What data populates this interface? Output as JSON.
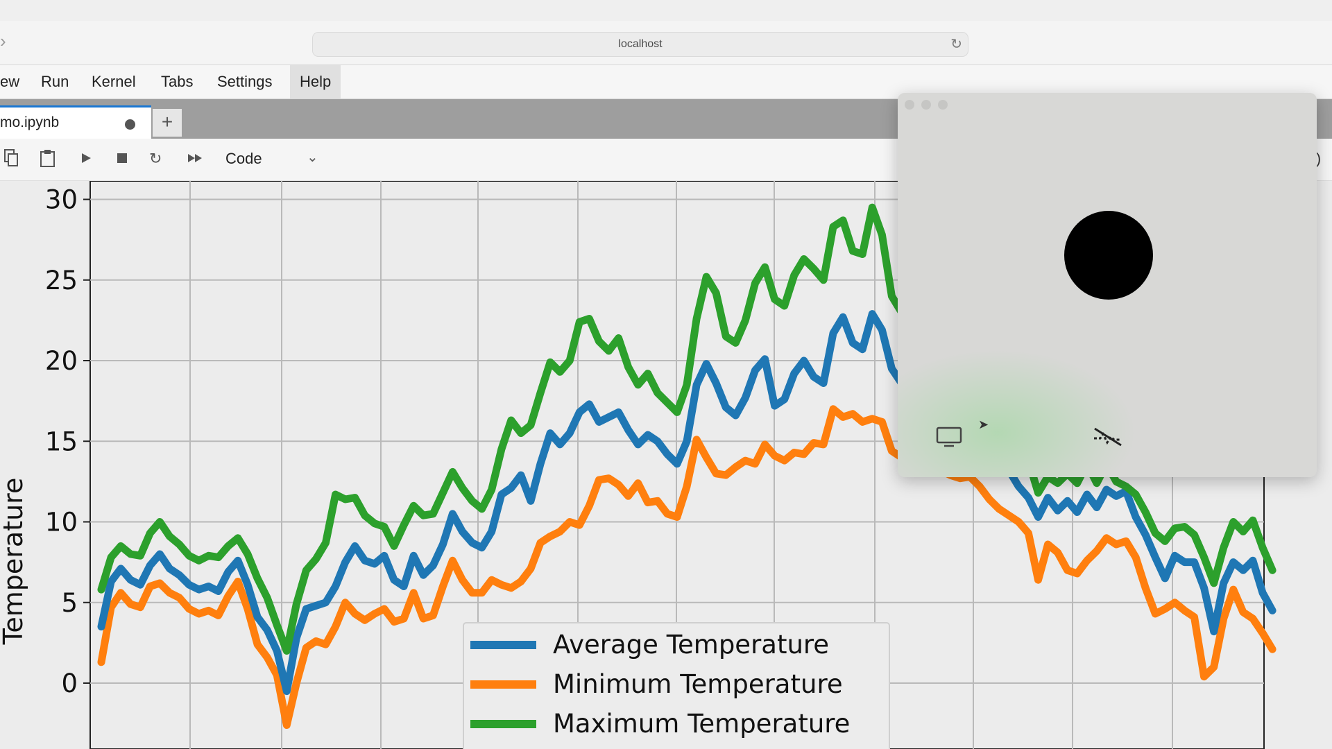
{
  "browser": {
    "url": "localhost",
    "forward_icon": "chevron-right-icon",
    "reload_icon": "reload-icon"
  },
  "menu": {
    "items": [
      "ew",
      "Run",
      "Kernel",
      "Tabs",
      "Settings",
      "Help"
    ]
  },
  "tabs": {
    "active_label": "mo.ipynb",
    "unsaved_indicator": "dot",
    "new_tab_label": "+"
  },
  "toolbar": {
    "icons": [
      "copy-icon",
      "paste-icon",
      "run-icon",
      "stop-icon",
      "restart-icon",
      "run-all-icon"
    ],
    "cell_type": "Code",
    "kernel_status_fragment": "l)"
  },
  "overlay": {
    "icons": [
      "record-dot-icon",
      "screen-icon",
      "pointer-icon",
      "camera-off-icon"
    ]
  },
  "chart_data": {
    "type": "line",
    "ylabel": "Temperature",
    "xlabel": "",
    "ylim": [
      -4,
      31
    ],
    "yticks": [
      0,
      5,
      10,
      15,
      20,
      25,
      30
    ],
    "grid": true,
    "legend_placement": "lower-center",
    "n_points": 120,
    "series": [
      {
        "name": "Average Temperature",
        "color": "#1f77b4",
        "values": [
          3.5,
          6.3,
          7.1,
          6.4,
          6.1,
          7.3,
          8.0,
          7.1,
          6.7,
          6.1,
          5.8,
          6.0,
          5.7,
          6.9,
          7.6,
          6.1,
          4.1,
          3.3,
          2.0,
          -0.5,
          2.8,
          4.6,
          4.8,
          5.0,
          6.0,
          7.5,
          8.5,
          7.6,
          7.4,
          7.9,
          6.4,
          6.0,
          7.9,
          6.7,
          7.3,
          8.6,
          10.5,
          9.4,
          8.7,
          8.4,
          9.4,
          11.7,
          12.1,
          12.9,
          11.3,
          13.6,
          15.5,
          14.8,
          15.5,
          16.8,
          17.3,
          16.2,
          16.5,
          16.8,
          15.7,
          14.8,
          15.4,
          15.0,
          14.2,
          13.6,
          15.0,
          18.5,
          19.8,
          18.6,
          17.1,
          16.6,
          17.7,
          19.4,
          20.1,
          17.2,
          17.6,
          19.2,
          20.0,
          19.0,
          18.6,
          21.7,
          22.7,
          21.1,
          20.7,
          22.9,
          21.9,
          19.5,
          18.6,
          19.0,
          18.3,
          17.0,
          17.5,
          17.7,
          17.6,
          17.0,
          15.5,
          14.8,
          14.2,
          13.2,
          12.2,
          11.5,
          10.3,
          11.5,
          10.7,
          11.3,
          10.6,
          11.7,
          10.9,
          12.0,
          11.6,
          11.9,
          10.3,
          9.2,
          7.8,
          6.5,
          7.9,
          7.5,
          7.5,
          5.9,
          3.2,
          6.2,
          7.5,
          7.0,
          7.6,
          5.6,
          4.5
        ]
      },
      {
        "name": "Minimum Temperature",
        "color": "#ff7f0e",
        "values": [
          1.3,
          4.7,
          5.6,
          4.9,
          4.7,
          6.0,
          6.2,
          5.6,
          5.3,
          4.6,
          4.3,
          4.5,
          4.2,
          5.4,
          6.3,
          4.6,
          2.4,
          1.6,
          0.5,
          -2.6,
          0.0,
          2.2,
          2.6,
          2.4,
          3.5,
          5.0,
          4.3,
          3.9,
          4.3,
          4.6,
          3.8,
          4.0,
          5.6,
          4.0,
          4.2,
          6.0,
          7.6,
          6.4,
          5.6,
          5.6,
          6.4,
          6.1,
          5.9,
          6.3,
          7.1,
          8.7,
          9.1,
          9.4,
          10.0,
          9.8,
          11.0,
          12.6,
          12.7,
          12.3,
          11.6,
          12.4,
          11.2,
          11.3,
          10.5,
          10.3,
          12.2,
          15.1,
          14.0,
          13.0,
          12.9,
          13.4,
          13.8,
          13.6,
          14.8,
          14.1,
          13.8,
          14.3,
          14.2,
          14.9,
          14.8,
          17.0,
          16.5,
          16.7,
          16.2,
          16.4,
          16.2,
          14.4,
          14.0,
          13.8,
          13.8,
          13.6,
          13.2,
          12.9,
          12.7,
          12.8,
          12.2,
          11.4,
          10.8,
          10.4,
          10.0,
          9.3,
          6.4,
          8.6,
          8.1,
          7.0,
          6.8,
          7.6,
          8.2,
          9.0,
          8.6,
          8.8,
          7.8,
          5.9,
          4.3,
          4.6,
          5.0,
          4.5,
          4.1,
          0.4,
          1.0,
          4.0,
          5.8,
          4.4,
          4.0,
          3.1,
          2.1
        ]
      },
      {
        "name": "Maximum Temperature",
        "color": "#2ca02c",
        "values": [
          5.8,
          7.8,
          8.5,
          8.0,
          7.9,
          9.3,
          10.0,
          9.1,
          8.6,
          7.9,
          7.6,
          7.9,
          7.8,
          8.5,
          9.0,
          8.0,
          6.5,
          5.3,
          3.6,
          2.0,
          4.9,
          7.0,
          7.7,
          8.7,
          11.7,
          11.4,
          11.5,
          10.4,
          9.9,
          9.7,
          8.5,
          9.8,
          11.0,
          10.4,
          10.5,
          11.8,
          13.1,
          12.1,
          11.3,
          10.8,
          12.0,
          14.5,
          16.3,
          15.5,
          16.0,
          18.0,
          19.9,
          19.3,
          20.0,
          22.4,
          22.6,
          21.2,
          20.6,
          21.4,
          19.6,
          18.5,
          19.2,
          18.0,
          17.4,
          16.8,
          18.5,
          22.6,
          25.2,
          24.2,
          21.5,
          21.1,
          22.5,
          24.8,
          25.8,
          23.8,
          23.4,
          25.3,
          26.3,
          25.7,
          25.0,
          28.3,
          28.7,
          26.8,
          26.6,
          29.5,
          27.8,
          24.0,
          23.0,
          23.4,
          23.5,
          20.8,
          22.8,
          23.3,
          22.4,
          21.6,
          19.1,
          17.9,
          17.1,
          16.2,
          14.8,
          13.8,
          11.8,
          12.8,
          12.4,
          13.0,
          12.4,
          13.6,
          12.4,
          13.6,
          12.5,
          12.2,
          11.7,
          10.6,
          9.3,
          8.8,
          9.6,
          9.7,
          9.2,
          7.8,
          6.2,
          8.4,
          10.0,
          9.4,
          10.1,
          8.4,
          7.0
        ]
      }
    ]
  }
}
